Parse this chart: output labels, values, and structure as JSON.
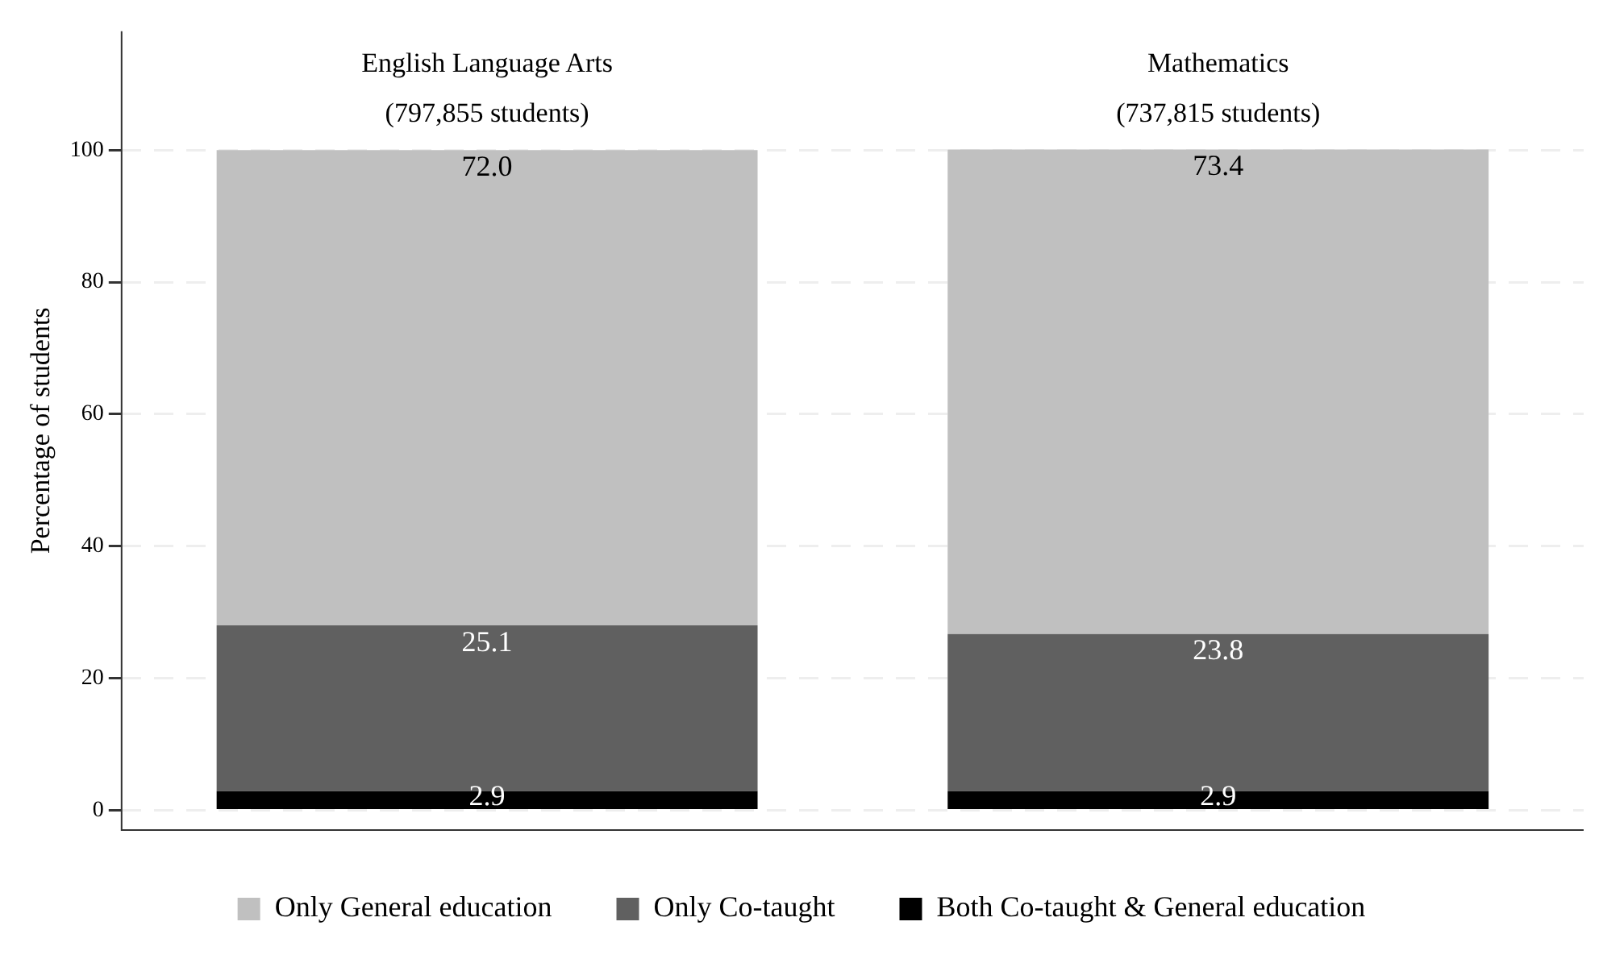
{
  "chart_data": {
    "type": "bar",
    "stacked": true,
    "ylabel": "Percentage of students",
    "categories": [
      "English Language Arts\n(797,855 students)",
      "Mathematics\n(737,815 students)"
    ],
    "series": [
      {
        "name": "Both Co-taught & General education",
        "color": "#000000",
        "values": [
          2.9,
          2.9
        ],
        "value_labels": [
          "2.9",
          "2.9"
        ]
      },
      {
        "name": "Only Co-taught",
        "color": "#606060",
        "values": [
          25.1,
          23.8
        ],
        "value_labels": [
          "25.1",
          "23.8"
        ]
      },
      {
        "name": "Only General education",
        "color": "#c0c0c0",
        "values": [
          72,
          73.4
        ],
        "value_labels": [
          "72.0",
          "73.4"
        ]
      }
    ],
    "ylim": [
      -3,
      118
    ],
    "yticks": [
      0,
      20,
      40,
      60,
      80,
      100
    ],
    "grid": "y",
    "legend": "bottom"
  }
}
